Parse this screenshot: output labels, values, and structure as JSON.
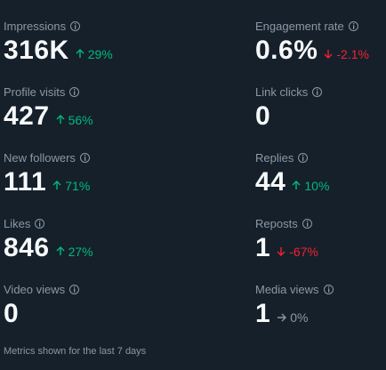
{
  "metrics": [
    {
      "label": "Impressions",
      "value": "316K",
      "change": "29%",
      "trend": "up"
    },
    {
      "label": "Engagement rate",
      "value": "0.6%",
      "change": "-2.1%",
      "trend": "down"
    },
    {
      "label": "Profile visits",
      "value": "427",
      "change": "56%",
      "trend": "up"
    },
    {
      "label": "Link clicks",
      "value": "0",
      "change": "",
      "trend": "none"
    },
    {
      "label": "New followers",
      "value": "111",
      "change": "71%",
      "trend": "up"
    },
    {
      "label": "Replies",
      "value": "44",
      "change": "10%",
      "trend": "up"
    },
    {
      "label": "Likes",
      "value": "846",
      "change": "27%",
      "trend": "up"
    },
    {
      "label": "Reposts",
      "value": "1",
      "change": "-67%",
      "trend": "down"
    },
    {
      "label": "Video views",
      "value": "0",
      "change": "",
      "trend": "none"
    },
    {
      "label": "Media views",
      "value": "1",
      "change": "0%",
      "trend": "flat"
    }
  ],
  "footer": "Metrics shown for the last 7 days",
  "colors": {
    "background": "#15202b",
    "up": "#00ba7c",
    "down": "#f4212e",
    "flat": "#8b98a5"
  },
  "icons": {
    "info": "info-icon",
    "up": "arrow-up-icon",
    "down": "arrow-down-icon",
    "flat": "arrow-right-icon"
  }
}
